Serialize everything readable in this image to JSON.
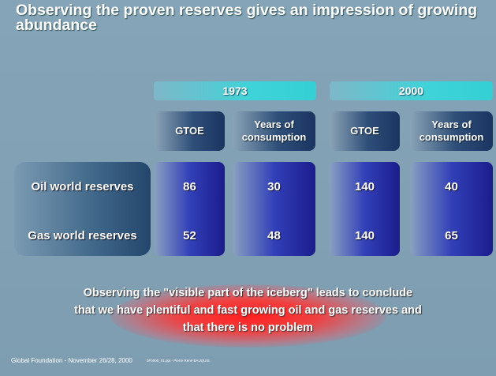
{
  "title": "Observing the proven reserves gives an impression of growing abundance",
  "table": {
    "groups": [
      "1973",
      "2000"
    ],
    "columns": [
      "GTOE",
      "Years of consumption",
      "GTOE",
      "Years of consumption"
    ],
    "rows": [
      {
        "label": "Oil world reserves",
        "values": [
          "86",
          "30",
          "140",
          "40"
        ]
      },
      {
        "label": "Gas world reserves",
        "values": [
          "52",
          "48",
          "140",
          "65"
        ]
      }
    ]
  },
  "note": [
    "Observing the \"visible part of the iceberg\" leads to conclude",
    "that we have plentiful and fast growing oil and gas reserves and",
    "that there is no problem"
  ],
  "footer": {
    "left": "Global Foundation - November 26/28, 2000",
    "file": "0F0000_01.ppt - Pierre René BAUQUIS"
  }
}
